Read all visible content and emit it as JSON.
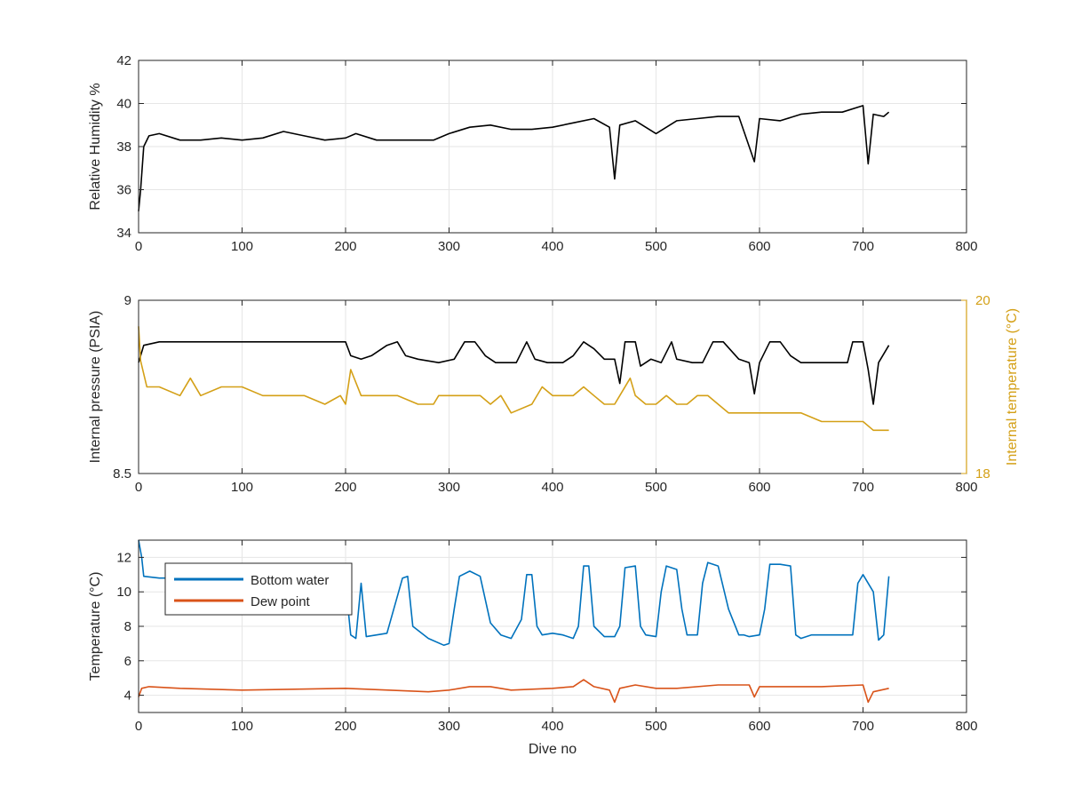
{
  "figure": {
    "colors": {
      "humidity": "#000000",
      "pressure": "#000000",
      "internal_temp": "#D4A017",
      "bottom_water": "#0072BD",
      "dew_point": "#D95319",
      "grid": "#e6e6e6",
      "axis": "#262626"
    }
  },
  "chart_data": [
    {
      "type": "line",
      "id": "humidity",
      "ylabel": "Relative Humidity %",
      "xlim": [
        0,
        800
      ],
      "ylim": [
        34,
        42
      ],
      "xticks": [
        0,
        100,
        200,
        300,
        400,
        500,
        600,
        700,
        800
      ],
      "yticks": [
        34,
        36,
        38,
        40,
        42
      ],
      "grid": true,
      "series": [
        {
          "color": "#000000",
          "x": [
            0,
            2,
            5,
            10,
            20,
            40,
            60,
            80,
            100,
            120,
            140,
            160,
            180,
            200,
            210,
            230,
            250,
            270,
            285,
            300,
            320,
            340,
            360,
            380,
            400,
            420,
            440,
            455,
            460,
            465,
            480,
            500,
            520,
            540,
            560,
            580,
            595,
            600,
            620,
            640,
            660,
            680,
            700,
            705,
            710,
            720,
            725
          ],
          "y": [
            35.0,
            36.0,
            38.0,
            38.5,
            38.6,
            38.3,
            38.3,
            38.4,
            38.3,
            38.4,
            38.7,
            38.5,
            38.3,
            38.4,
            38.6,
            38.3,
            38.3,
            38.3,
            38.3,
            38.6,
            38.9,
            39.0,
            38.8,
            38.8,
            38.9,
            39.1,
            39.3,
            38.9,
            36.5,
            39.0,
            39.2,
            38.6,
            39.2,
            39.3,
            39.4,
            39.4,
            37.3,
            39.3,
            39.2,
            39.5,
            39.6,
            39.6,
            39.9,
            37.2,
            39.5,
            39.4,
            39.6
          ]
        }
      ]
    },
    {
      "type": "line",
      "id": "pressure",
      "ylabel": "Internal pressure (PSIA)",
      "y2label": "Internal temperature (°C)",
      "xlim": [
        0,
        800
      ],
      "ylim": [
        8.5,
        9
      ],
      "y2lim": [
        18,
        20
      ],
      "xticks": [
        0,
        100,
        200,
        300,
        400,
        500,
        600,
        700,
        800
      ],
      "yticks": [
        8.5,
        9
      ],
      "y2ticks": [
        18,
        20
      ],
      "grid": true,
      "series": [
        {
          "axis": "left",
          "color": "#000000",
          "x": [
            0,
            5,
            20,
            40,
            60,
            80,
            100,
            120,
            140,
            160,
            180,
            200,
            205,
            215,
            225,
            240,
            250,
            258,
            270,
            290,
            305,
            315,
            325,
            335,
            345,
            365,
            375,
            383,
            395,
            410,
            420,
            430,
            440,
            450,
            460,
            465,
            470,
            480,
            485,
            495,
            505,
            515,
            520,
            535,
            545,
            555,
            565,
            580,
            590,
            595,
            600,
            610,
            620,
            630,
            640,
            660,
            685,
            690,
            700,
            705,
            710,
            715,
            725
          ],
          "y": [
            8.82,
            8.87,
            8.88,
            8.88,
            8.88,
            8.88,
            8.88,
            8.88,
            8.88,
            8.88,
            8.88,
            8.88,
            8.84,
            8.83,
            8.84,
            8.87,
            8.88,
            8.84,
            8.83,
            8.82,
            8.83,
            8.88,
            8.88,
            8.84,
            8.82,
            8.82,
            8.88,
            8.83,
            8.82,
            8.82,
            8.84,
            8.88,
            8.86,
            8.83,
            8.83,
            8.76,
            8.88,
            8.88,
            8.81,
            8.83,
            8.82,
            8.88,
            8.83,
            8.82,
            8.82,
            8.88,
            8.88,
            8.83,
            8.82,
            8.73,
            8.82,
            8.88,
            8.88,
            8.84,
            8.82,
            8.82,
            8.82,
            8.88,
            8.88,
            8.8,
            8.7,
            8.82,
            8.87
          ]
        },
        {
          "axis": "right",
          "color": "#D4A017",
          "x": [
            0,
            2,
            8,
            20,
            40,
            50,
            60,
            80,
            100,
            120,
            140,
            160,
            180,
            195,
            200,
            205,
            215,
            230,
            250,
            270,
            285,
            290,
            300,
            310,
            320,
            330,
            340,
            350,
            360,
            380,
            390,
            400,
            410,
            420,
            430,
            440,
            450,
            460,
            465,
            475,
            480,
            490,
            500,
            510,
            520,
            530,
            540,
            550,
            560,
            570,
            580,
            600,
            620,
            640,
            660,
            680,
            700,
            710,
            720,
            725
          ],
          "y": [
            19.7,
            19.3,
            19.0,
            19.0,
            18.9,
            19.1,
            18.9,
            19.0,
            19.0,
            18.9,
            18.9,
            18.9,
            18.8,
            18.9,
            18.8,
            19.2,
            18.9,
            18.9,
            18.9,
            18.8,
            18.8,
            18.9,
            18.9,
            18.9,
            18.9,
            18.9,
            18.8,
            18.9,
            18.7,
            18.8,
            19.0,
            18.9,
            18.9,
            18.9,
            19.0,
            18.9,
            18.8,
            18.8,
            18.9,
            19.1,
            18.9,
            18.8,
            18.8,
            18.9,
            18.8,
            18.8,
            18.9,
            18.9,
            18.8,
            18.7,
            18.7,
            18.7,
            18.7,
            18.7,
            18.6,
            18.6,
            18.6,
            18.5,
            18.5,
            18.5
          ]
        }
      ]
    },
    {
      "type": "line",
      "id": "temperature",
      "ylabel": "Temperature (°C)",
      "xlabel": "Dive no",
      "xlim": [
        0,
        800
      ],
      "ylim": [
        3,
        13
      ],
      "xticks": [
        0,
        100,
        200,
        300,
        400,
        500,
        600,
        700,
        800
      ],
      "yticks": [
        4,
        6,
        8,
        10,
        12
      ],
      "grid": true,
      "legend": "top-left",
      "series": [
        {
          "name": "Bottom water",
          "color": "#0072BD",
          "x": [
            0,
            3,
            5,
            20,
            40,
            100,
            190,
            200,
            205,
            210,
            215,
            220,
            240,
            255,
            260,
            265,
            280,
            295,
            300,
            305,
            310,
            320,
            330,
            340,
            350,
            360,
            370,
            375,
            380,
            385,
            390,
            400,
            410,
            420,
            425,
            430,
            435,
            440,
            450,
            460,
            465,
            470,
            480,
            485,
            490,
            500,
            505,
            510,
            520,
            525,
            530,
            540,
            545,
            550,
            560,
            570,
            580,
            585,
            590,
            600,
            605,
            610,
            620,
            630,
            635,
            640,
            650,
            660,
            680,
            690,
            695,
            700,
            710,
            715,
            720,
            725
          ],
          "y": [
            13.0,
            12.0,
            10.9,
            10.8,
            10.8,
            10.8,
            10.6,
            10.5,
            7.5,
            7.3,
            10.5,
            7.4,
            7.6,
            10.8,
            10.9,
            8.0,
            7.3,
            6.9,
            7.0,
            9.0,
            10.9,
            11.2,
            10.9,
            8.2,
            7.5,
            7.3,
            8.4,
            11.0,
            11.0,
            8.0,
            7.5,
            7.6,
            7.5,
            7.3,
            8.0,
            11.5,
            11.5,
            8.0,
            7.4,
            7.4,
            8.0,
            11.4,
            11.5,
            8.0,
            7.5,
            7.4,
            10.0,
            11.5,
            11.3,
            9.0,
            7.5,
            7.5,
            10.5,
            11.7,
            11.5,
            9.0,
            7.5,
            7.5,
            7.4,
            7.5,
            9.0,
            11.6,
            11.6,
            11.5,
            7.5,
            7.3,
            7.5,
            7.5,
            7.5,
            7.5,
            10.5,
            11.0,
            10.0,
            7.2,
            7.5,
            10.9
          ]
        },
        {
          "name": "Dew point",
          "color": "#D95319",
          "x": [
            0,
            3,
            10,
            40,
            100,
            200,
            280,
            300,
            320,
            340,
            360,
            400,
            420,
            430,
            440,
            455,
            460,
            465,
            480,
            500,
            520,
            560,
            590,
            595,
            600,
            620,
            660,
            700,
            705,
            710,
            725
          ],
          "y": [
            3.9,
            4.4,
            4.5,
            4.4,
            4.3,
            4.4,
            4.2,
            4.3,
            4.5,
            4.5,
            4.3,
            4.4,
            4.5,
            4.9,
            4.5,
            4.3,
            3.6,
            4.4,
            4.6,
            4.4,
            4.4,
            4.6,
            4.6,
            3.9,
            4.5,
            4.5,
            4.5,
            4.6,
            3.6,
            4.2,
            4.4
          ]
        }
      ]
    }
  ]
}
